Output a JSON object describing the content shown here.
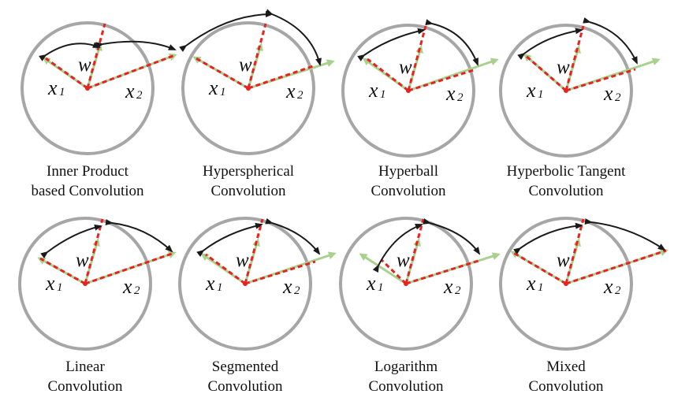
{
  "colors": {
    "circle": "#a6a6a6",
    "green_vector": "#a9d18e",
    "red_dashed": "#e8231f",
    "arc": "#1a1a1a",
    "text": "#111111"
  },
  "symbols": {
    "w": "w",
    "x": "x",
    "sub_1": "1",
    "sub_2": "2"
  },
  "panels": [
    {
      "title_line1": "Inner Product",
      "title_line2": "based Convolution"
    },
    {
      "title_line1": "Hyperspherical",
      "title_line2": "Convolution"
    },
    {
      "title_line1": "Hyperball",
      "title_line2": "Convolution"
    },
    {
      "title_line1": "Hyperbolic Tangent",
      "title_line2": "Convolution"
    },
    {
      "title_line1": "Linear",
      "title_line2": "Convolution"
    },
    {
      "title_line1": "Segmented",
      "title_line2": "Convolution"
    },
    {
      "title_line1": "Logarithm",
      "title_line2": "Convolution"
    },
    {
      "title_line1": "Mixed",
      "title_line2": "Convolution"
    }
  ]
}
